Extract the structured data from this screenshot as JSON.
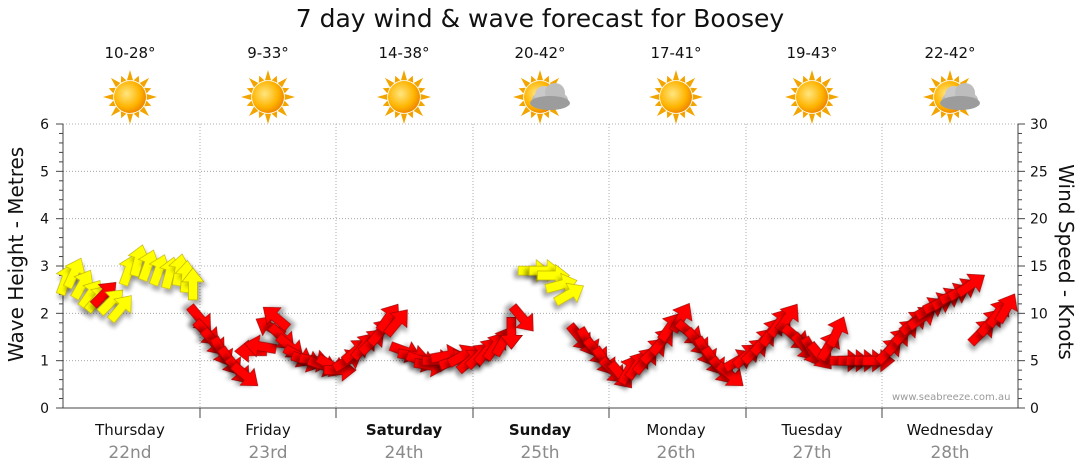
{
  "title": "7 day wind & wave forecast for Boosey",
  "watermark": "www.seabreeze.com.au",
  "days": [
    {
      "name": "Thursday",
      "date": "22nd",
      "temp": "10-28°",
      "icon": "sun-icon",
      "bold": false
    },
    {
      "name": "Friday",
      "date": "23rd",
      "temp": "9-33°",
      "icon": "sun-icon",
      "bold": false
    },
    {
      "name": "Saturday",
      "date": "24th",
      "temp": "14-38°",
      "icon": "sun-icon",
      "bold": true
    },
    {
      "name": "Sunday",
      "date": "25th",
      "temp": "20-42°",
      "icon": "sun-cloud-icon",
      "bold": true
    },
    {
      "name": "Monday",
      "date": "26th",
      "temp": "17-41°",
      "icon": "sun-icon",
      "bold": false
    },
    {
      "name": "Tuesday",
      "date": "27th",
      "temp": "19-43°",
      "icon": "sun-icon",
      "bold": false
    },
    {
      "name": "Wednesday",
      "date": "28th",
      "temp": "22-42°",
      "icon": "sun-cloud-icon",
      "bold": false
    }
  ],
  "colors": {
    "strong": "#ff0000",
    "light": "#ffff00",
    "grid": "#999999",
    "axis": "#444444",
    "date": "#8a8a8a"
  },
  "chart_data": {
    "type": "scatter",
    "title": "7 day wind & wave forecast for Boosey",
    "ylabel_left": "Wave Height - Metres",
    "ylabel_right": "Wind Speed - Knots",
    "ylim_left": [
      0,
      6
    ],
    "ylim_right": [
      0,
      30
    ],
    "yticks_left": [
      "0",
      "1",
      "2",
      "3",
      "4",
      "5",
      "6"
    ],
    "yticks_right": [
      "0",
      "5",
      "10",
      "15",
      "20",
      "25",
      "30"
    ],
    "x_categories": [
      "Thursday 22nd",
      "Friday 23rd",
      "Saturday 24th",
      "Sunday 25th",
      "Monday 26th",
      "Tuesday 27th",
      "Wednesday 28th"
    ],
    "grid": "vertical dotted at day boundaries, horizontal dotted at whole metres",
    "series": [
      {
        "name": "",
        "marker": "arrow",
        "note": "each point: day offset (0-7), wind speed in knots, direction arrow points toward (degrees, 0 = up/north, 90 = right/east), color light (yellow) or strong (red)",
        "points": [
          [
            0.02,
            13.5,
            20,
            "light"
          ],
          [
            0.08,
            14.2,
            25,
            "light"
          ],
          [
            0.14,
            13.0,
            30,
            "light"
          ],
          [
            0.2,
            12.0,
            35,
            "light"
          ],
          [
            0.25,
            11.5,
            40,
            "light"
          ],
          [
            0.3,
            12.0,
            45,
            "strong"
          ],
          [
            0.35,
            11.2,
            45,
            "light"
          ],
          [
            0.42,
            10.5,
            40,
            "light"
          ],
          [
            0.48,
            14.5,
            20,
            "light"
          ],
          [
            0.55,
            15.5,
            15,
            "light"
          ],
          [
            0.62,
            15.0,
            20,
            "light"
          ],
          [
            0.7,
            14.5,
            20,
            "light"
          ],
          [
            0.78,
            14.2,
            15,
            "light"
          ],
          [
            0.85,
            14.5,
            10,
            "light"
          ],
          [
            0.9,
            13.8,
            5,
            "light"
          ],
          [
            0.95,
            13.0,
            0,
            "light"
          ],
          [
            1.0,
            9.5,
            140,
            "strong"
          ],
          [
            1.05,
            8.0,
            135,
            "strong"
          ],
          [
            1.1,
            7.0,
            140,
            "strong"
          ],
          [
            1.16,
            6.0,
            150,
            "strong"
          ],
          [
            1.22,
            5.0,
            145,
            "strong"
          ],
          [
            1.28,
            4.0,
            140,
            "strong"
          ],
          [
            1.33,
            3.5,
            130,
            "strong"
          ],
          [
            1.38,
            6.0,
            270,
            "strong"
          ],
          [
            1.45,
            6.5,
            280,
            "strong"
          ],
          [
            1.52,
            8.5,
            300,
            "strong"
          ],
          [
            1.56,
            9.5,
            310,
            "strong"
          ],
          [
            1.6,
            7.5,
            135,
            "strong"
          ],
          [
            1.66,
            6.5,
            130,
            "strong"
          ],
          [
            1.72,
            5.5,
            120,
            "strong"
          ],
          [
            1.78,
            5.0,
            110,
            "strong"
          ],
          [
            1.84,
            5.0,
            100,
            "strong"
          ],
          [
            1.9,
            4.5,
            110,
            "strong"
          ],
          [
            1.96,
            4.5,
            120,
            "strong"
          ],
          [
            2.02,
            4.0,
            90,
            "strong"
          ],
          [
            2.08,
            5.0,
            60,
            "strong"
          ],
          [
            2.14,
            6.0,
            50,
            "strong"
          ],
          [
            2.2,
            6.5,
            40,
            "strong"
          ],
          [
            2.26,
            7.0,
            45,
            "strong"
          ],
          [
            2.32,
            8.0,
            40,
            "strong"
          ],
          [
            2.38,
            9.5,
            35,
            "strong"
          ],
          [
            2.44,
            9.0,
            40,
            "strong"
          ],
          [
            2.5,
            6.0,
            110,
            "strong"
          ],
          [
            2.56,
            5.5,
            100,
            "strong"
          ],
          [
            2.62,
            5.0,
            110,
            "strong"
          ],
          [
            2.68,
            4.5,
            100,
            "strong"
          ],
          [
            2.74,
            5.0,
            90,
            "strong"
          ],
          [
            2.8,
            5.5,
            80,
            "strong"
          ],
          [
            2.86,
            5.0,
            70,
            "strong"
          ],
          [
            2.92,
            5.5,
            60,
            "strong"
          ],
          [
            2.98,
            5.0,
            50,
            "strong"
          ],
          [
            3.04,
            5.5,
            45,
            "strong"
          ],
          [
            3.1,
            6.0,
            40,
            "strong"
          ],
          [
            3.16,
            6.5,
            35,
            "strong"
          ],
          [
            3.22,
            7.0,
            30,
            "strong"
          ],
          [
            3.28,
            8.0,
            180,
            "strong"
          ],
          [
            3.36,
            9.5,
            140,
            "strong"
          ],
          [
            3.44,
            14.5,
            90,
            "light"
          ],
          [
            3.52,
            14.5,
            90,
            "light"
          ],
          [
            3.58,
            14.0,
            90,
            "light"
          ],
          [
            3.64,
            13.0,
            75,
            "light"
          ],
          [
            3.7,
            12.0,
            60,
            "light"
          ],
          [
            3.78,
            7.5,
            140,
            "strong"
          ],
          [
            3.84,
            7.0,
            150,
            "strong"
          ],
          [
            3.9,
            6.0,
            140,
            "strong"
          ],
          [
            3.96,
            5.0,
            145,
            "strong"
          ],
          [
            4.02,
            4.0,
            135,
            "strong"
          ],
          [
            4.08,
            3.5,
            140,
            "strong"
          ],
          [
            4.14,
            4.0,
            30,
            "strong"
          ],
          [
            4.2,
            4.5,
            35,
            "strong"
          ],
          [
            4.26,
            5.0,
            40,
            "strong"
          ],
          [
            4.32,
            6.0,
            45,
            "strong"
          ],
          [
            4.38,
            7.0,
            40,
            "strong"
          ],
          [
            4.44,
            8.5,
            35,
            "strong"
          ],
          [
            4.52,
            9.5,
            30,
            "strong"
          ],
          [
            4.58,
            8.0,
            130,
            "strong"
          ],
          [
            4.64,
            7.0,
            140,
            "strong"
          ],
          [
            4.7,
            6.0,
            150,
            "strong"
          ],
          [
            4.76,
            5.0,
            145,
            "strong"
          ],
          [
            4.82,
            4.0,
            140,
            "strong"
          ],
          [
            4.88,
            3.5,
            130,
            "strong"
          ],
          [
            4.94,
            5.0,
            60,
            "strong"
          ],
          [
            5.0,
            5.5,
            50,
            "strong"
          ],
          [
            5.06,
            6.0,
            45,
            "strong"
          ],
          [
            5.12,
            7.0,
            40,
            "strong"
          ],
          [
            5.18,
            8.0,
            35,
            "strong"
          ],
          [
            5.24,
            9.0,
            35,
            "strong"
          ],
          [
            5.3,
            9.5,
            35,
            "strong"
          ],
          [
            5.36,
            7.5,
            130,
            "strong"
          ],
          [
            5.42,
            6.5,
            140,
            "strong"
          ],
          [
            5.48,
            6.0,
            150,
            "strong"
          ],
          [
            5.54,
            5.5,
            140,
            "strong"
          ],
          [
            5.6,
            6.5,
            30,
            "strong"
          ],
          [
            5.66,
            8.0,
            25,
            "strong"
          ],
          [
            5.72,
            5.0,
            90,
            "strong"
          ],
          [
            5.78,
            5.0,
            90,
            "strong"
          ],
          [
            5.84,
            5.0,
            90,
            "strong"
          ],
          [
            5.9,
            5.0,
            90,
            "strong"
          ],
          [
            5.96,
            5.0,
            90,
            "strong"
          ],
          [
            6.04,
            6.0,
            45,
            "strong"
          ],
          [
            6.1,
            7.0,
            40,
            "strong"
          ],
          [
            6.16,
            8.0,
            45,
            "strong"
          ],
          [
            6.22,
            9.0,
            50,
            "strong"
          ],
          [
            6.28,
            9.5,
            55,
            "strong"
          ],
          [
            6.34,
            10.5,
            60,
            "strong"
          ],
          [
            6.4,
            11.0,
            65,
            "strong"
          ],
          [
            6.46,
            11.5,
            60,
            "strong"
          ],
          [
            6.52,
            12.0,
            65,
            "strong"
          ],
          [
            6.58,
            12.5,
            60,
            "strong"
          ],
          [
            6.64,
            13.0,
            55,
            "strong"
          ],
          [
            6.72,
            8.0,
            45,
            "strong"
          ],
          [
            6.78,
            9.0,
            40,
            "strong"
          ],
          [
            6.84,
            10.0,
            35,
            "strong"
          ],
          [
            6.9,
            10.5,
            30,
            "strong"
          ]
        ]
      }
    ]
  }
}
